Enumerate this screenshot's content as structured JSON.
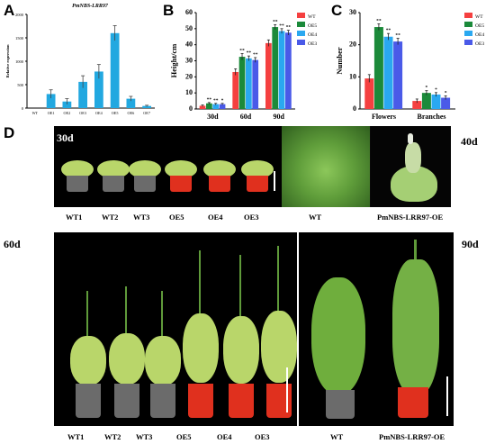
{
  "panels": {
    "A": "A",
    "B": "B",
    "C": "C",
    "D": "D"
  },
  "chart_data": [
    {
      "type": "bar",
      "title": "PmNBS-LRR97",
      "ylabel": "Relative expression",
      "xlabel": "",
      "categories": [
        "WT",
        "OE1",
        "OE2",
        "OE3",
        "OE4",
        "OE5",
        "OE6",
        "OE7"
      ],
      "values": [
        0,
        300,
        140,
        560,
        780,
        1600,
        200,
        45
      ],
      "errors": [
        0,
        90,
        60,
        130,
        150,
        160,
        50,
        15
      ],
      "ylim": [
        0,
        2000
      ],
      "yticks": [
        "0",
        "500",
        "1000",
        "1500",
        "2000"
      ],
      "color": "#22a8e0"
    },
    {
      "type": "bar",
      "title": "",
      "ylabel": "Height/cm",
      "xlabel": "",
      "categories": [
        "30d",
        "60d",
        "90d"
      ],
      "series": [
        {
          "name": "WT",
          "values": [
            2,
            23,
            41
          ],
          "errors": [
            0.5,
            2,
            2
          ],
          "sig": [
            "",
            "",
            ""
          ]
        },
        {
          "name": "OE5",
          "values": [
            3.5,
            32.5,
            51
          ],
          "errors": [
            0.5,
            2,
            1.5
          ],
          "sig": [
            "**",
            "**",
            "**"
          ]
        },
        {
          "name": "OE4",
          "values": [
            3,
            31.5,
            48.5
          ],
          "errors": [
            0.5,
            1.5,
            1.5
          ],
          "sig": [
            "**",
            "**",
            "**"
          ]
        },
        {
          "name": "OE3",
          "values": [
            3,
            30.5,
            47.5
          ],
          "errors": [
            0.5,
            1.5,
            1.5
          ],
          "sig": [
            "*",
            "**",
            "**"
          ]
        }
      ],
      "ylim": [
        0,
        60
      ],
      "yticks": [
        "0",
        "10",
        "20",
        "30",
        "40",
        "50",
        "60"
      ],
      "colors": [
        "#f54040",
        "#1b8a3a",
        "#2aa8f0",
        "#4a5ae8"
      ],
      "legend": "top-right"
    },
    {
      "type": "bar",
      "title": "",
      "ylabel": "Number",
      "xlabel": "",
      "categories": [
        "Flowers",
        "Branches"
      ],
      "series": [
        {
          "name": "WT",
          "values": [
            9.5,
            2.5
          ],
          "errors": [
            1.2,
            0.6
          ],
          "sig": [
            "",
            ""
          ]
        },
        {
          "name": "OE5",
          "values": [
            25.5,
            5
          ],
          "errors": [
            1,
            0.7
          ],
          "sig": [
            "**",
            "*"
          ]
        },
        {
          "name": "OE4",
          "values": [
            22.5,
            4.5
          ],
          "errors": [
            1,
            0.6
          ],
          "sig": [
            "**",
            "*"
          ]
        },
        {
          "name": "OE3",
          "values": [
            21,
            3.5
          ],
          "errors": [
            1,
            0.6
          ],
          "sig": [
            "**",
            "*"
          ]
        }
      ],
      "ylim": [
        0,
        30
      ],
      "yticks": [
        "0",
        "10",
        "20",
        "30"
      ],
      "colors": [
        "#f54040",
        "#1b8a3a",
        "#2aa8f0",
        "#4a5ae8"
      ],
      "legend": "top-right"
    }
  ],
  "photos": {
    "p30": {
      "tag": "30d",
      "labels": [
        "WT1",
        "WT2",
        "WT3",
        "OE5",
        "OE4",
        "OE3"
      ]
    },
    "p40": {
      "tag": "40d",
      "labels": [
        "WT",
        "PmNBS-LRR97-OE"
      ]
    },
    "p60": {
      "tag": "60d",
      "labels": [
        "WT1",
        "WT2",
        "WT3",
        "OE5",
        "OE4",
        "OE3"
      ]
    },
    "p90": {
      "tag": "90d",
      "labels": [
        "WT",
        "PmNBS-LRR97-OE"
      ]
    }
  },
  "colors": {
    "pot_oe": "#e0301e",
    "pot_wt": "#6b6b6b",
    "leaf": "#b9d66a",
    "leaf_dark": "#5f9a3a"
  }
}
